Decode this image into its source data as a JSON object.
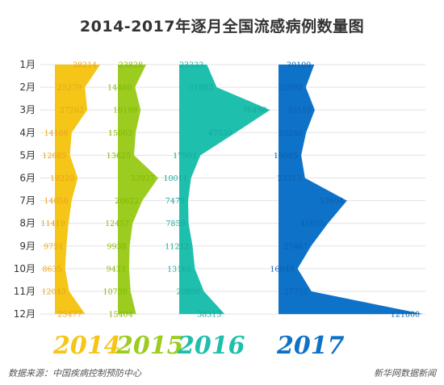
{
  "chart_data": {
    "type": "area",
    "title": "2014-2017年逐月全国流感病例数量图",
    "categories": [
      "1月",
      "2月",
      "3月",
      "4月",
      "5月",
      "6月",
      "7月",
      "8月",
      "9月",
      "10月",
      "11月",
      "12月"
    ],
    "series": [
      {
        "name": "2014",
        "color": "#f5c518",
        "label_color": "#e8a317",
        "values": [
          38214,
          25279,
          27262,
          14166,
          12685,
          19220,
          14056,
          11419,
          9751,
          8635,
          12043,
          25477
        ]
      },
      {
        "name": "2015",
        "color": "#9ccc1f",
        "label_color": "#7fb800",
        "values": [
          23828,
          14480,
          19199,
          15063,
          13625,
          33927,
          20622,
          12457,
          9938,
          9433,
          10730,
          15404
        ]
      },
      {
        "name": "2016",
        "color": "#1fbfad",
        "label_color": "#14a89a",
        "values": [
          23333,
          31602,
          76498,
          47530,
          17901,
          10011,
          7479,
          7859,
          11212,
          13165,
          20800,
          38313
        ]
      },
      {
        "name": "2017",
        "color": "#0d72c8",
        "label_color": "#0d5fae",
        "values": [
          30109,
          22998,
          30519,
          23260,
          19085,
          22313,
          57694,
          41625,
          27467,
          16049,
          27731,
          121800
        ]
      }
    ],
    "grid": true
  },
  "footer": {
    "source": "数据来源：中国疾病控制预防中心",
    "credit": "新华网数据新闻"
  }
}
